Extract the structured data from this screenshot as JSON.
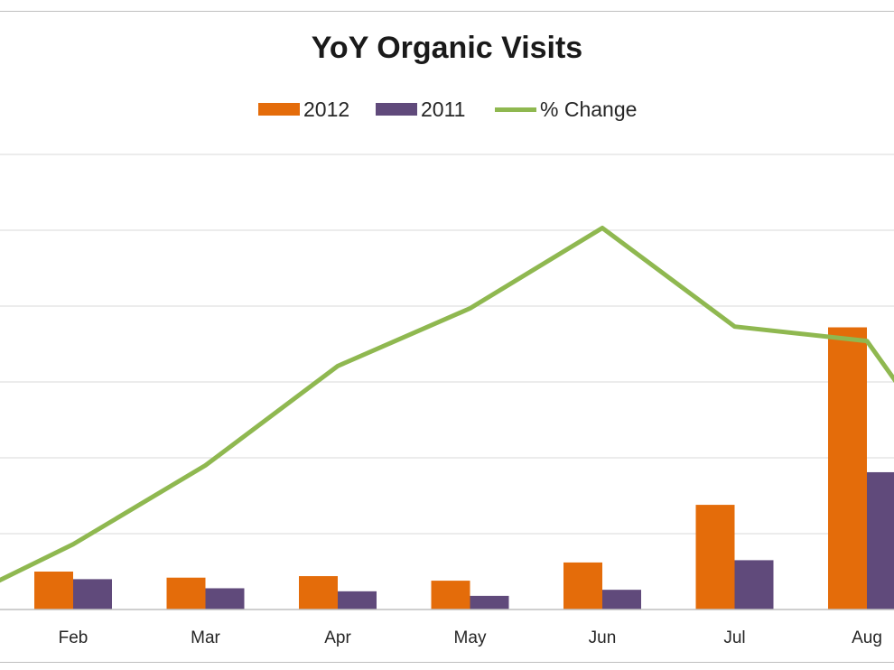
{
  "chart_data": {
    "type": "bar",
    "title": "YoY Organic Visits",
    "categories": [
      "Feb",
      "Mar",
      "Apr",
      "May",
      "Jun",
      "Jul",
      "Aug"
    ],
    "series": [
      {
        "name": "2012",
        "type": "bar",
        "color": "#e46c0a",
        "values": [
          0.5,
          0.42,
          0.44,
          0.38,
          0.62,
          1.38,
          3.72
        ]
      },
      {
        "name": "2011",
        "type": "bar",
        "color": "#604a7b",
        "values": [
          0.4,
          0.28,
          0.24,
          0.18,
          0.26,
          0.65,
          1.81
        ]
      },
      {
        "name": "% Change",
        "type": "line",
        "color": "#8fb850",
        "values": [
          0.86,
          1.9,
          3.21,
          3.97,
          5.03,
          3.73,
          3.54
        ]
      }
    ],
    "ylim": [
      0,
      6
    ],
    "gridlines": true,
    "legend_position": "top"
  }
}
